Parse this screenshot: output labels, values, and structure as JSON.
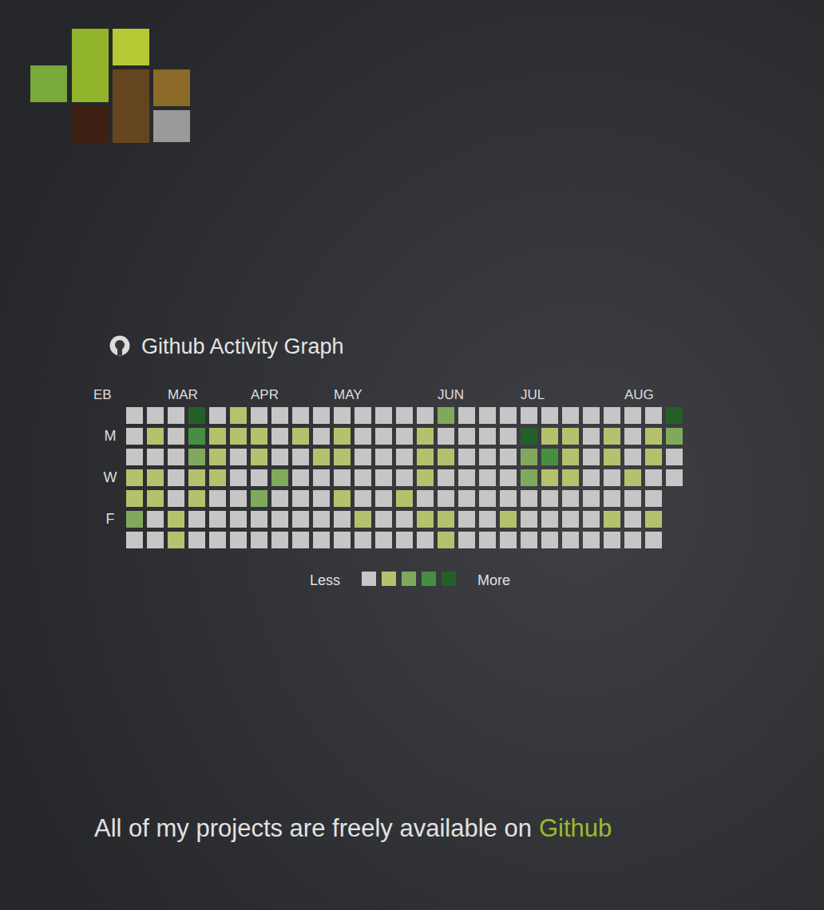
{
  "chart_data": {
    "type": "heatmap",
    "title": "Github Activity Graph",
    "x": [
      null,
      null,
      "MAR",
      null,
      null,
      null,
      "APR",
      null,
      null,
      null,
      "MAY",
      null,
      null,
      null,
      null,
      "JUN",
      null,
      null,
      null,
      "JUL",
      null,
      null,
      null,
      null,
      "AUG",
      null,
      null
    ],
    "y": [
      null,
      "M",
      null,
      "W",
      null,
      "F",
      null
    ],
    "annotations": [
      "EB"
    ],
    "cells": [
      [
        0,
        0,
        0,
        4,
        0,
        1,
        0,
        0,
        0,
        0,
        0,
        0,
        0,
        0,
        0,
        2,
        0,
        0,
        0,
        0,
        0,
        0,
        0,
        0,
        0,
        0,
        4
      ],
      [
        0,
        1,
        0,
        3,
        1,
        1,
        1,
        0,
        1,
        0,
        1,
        0,
        0,
        0,
        1,
        0,
        0,
        0,
        0,
        4,
        1,
        1,
        0,
        1,
        0,
        1,
        2
      ],
      [
        0,
        0,
        0,
        2,
        1,
        0,
        1,
        0,
        0,
        1,
        1,
        0,
        0,
        0,
        1,
        1,
        0,
        0,
        0,
        2,
        3,
        1,
        0,
        1,
        0,
        1,
        0
      ],
      [
        1,
        1,
        0,
        1,
        1,
        0,
        0,
        2,
        0,
        0,
        0,
        0,
        0,
        0,
        1,
        0,
        0,
        0,
        0,
        2,
        1,
        1,
        0,
        0,
        1,
        0,
        0
      ],
      [
        1,
        1,
        0,
        1,
        0,
        0,
        2,
        0,
        0,
        0,
        1,
        0,
        0,
        1,
        0,
        0,
        0,
        0,
        0,
        0,
        0,
        0,
        0,
        0,
        0,
        0,
        null
      ],
      [
        2,
        0,
        1,
        0,
        0,
        0,
        0,
        0,
        0,
        0,
        0,
        1,
        0,
        0,
        1,
        1,
        0,
        0,
        1,
        0,
        0,
        0,
        0,
        1,
        0,
        1,
        null
      ],
      [
        0,
        0,
        1,
        0,
        0,
        0,
        0,
        0,
        0,
        0,
        0,
        0,
        0,
        0,
        0,
        1,
        0,
        0,
        0,
        0,
        0,
        0,
        0,
        0,
        0,
        0,
        null
      ]
    ],
    "colorbar": {
      "range": [
        0,
        4
      ],
      "ticks": [
        0,
        1,
        2,
        3,
        4
      ],
      "colors": [
        "#c6c6c6",
        "#b6c16e",
        "#80a95c",
        "#468f41",
        "#245f29"
      ],
      "min_label": "Less",
      "max_label": "More"
    }
  },
  "page": {
    "footer": {
      "text": "All of my projects are freely available on",
      "link": "Github"
    }
  }
}
